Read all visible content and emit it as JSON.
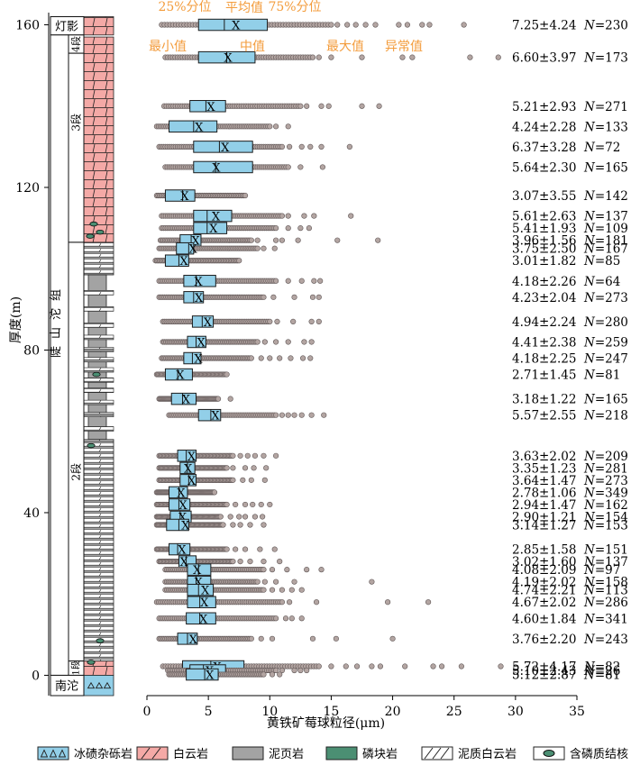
{
  "chart_data": {
    "type": "box",
    "xlabel": "黄铁矿莓球粒径(μm)",
    "ylabel": "厚度(m)",
    "xlim": [
      0,
      35
    ],
    "ylim": [
      -5,
      163
    ],
    "xticks": [
      0,
      5,
      10,
      15,
      20,
      25,
      30,
      35
    ],
    "yticks": [
      0,
      40,
      80,
      120,
      160
    ],
    "formation_label": "陡山沱组",
    "units": [
      {
        "name": "灯影",
        "bottom": 157.5,
        "top": 162
      },
      {
        "name": "4段",
        "bottom": 153,
        "top": 157.5
      },
      {
        "name": "3段",
        "bottom": 106.5,
        "top": 157.5
      },
      {
        "name": "2段",
        "bottom": 3.5,
        "top": 106.5
      },
      {
        "name": "1段",
        "bottom": 0,
        "top": 3.5
      },
      {
        "name": "南沱",
        "bottom": -5,
        "top": 0
      }
    ],
    "lithology": [
      {
        "type": "dolomite",
        "bottom": 157.5,
        "top": 162
      },
      {
        "type": "dolomite",
        "bottom": 106.5,
        "top": 157
      },
      {
        "type": "muddy_dolomite",
        "bottom": 98.5,
        "top": 106.5
      },
      {
        "type": "shale",
        "bottom": 58,
        "top": 98.5
      },
      {
        "type": "muddy_dolomite",
        "bottom": 3.5,
        "top": 58
      },
      {
        "type": "dolomite",
        "bottom": 0,
        "top": 3.5
      },
      {
        "type": "tillite",
        "bottom": -5,
        "top": 0
      }
    ],
    "annotations": {
      "q1": "25%分位",
      "mean": "平均值",
      "q3": "75%分位",
      "min": "最小值",
      "median": "中值",
      "max": "最大值",
      "outlier": "异常值"
    },
    "samples": [
      {
        "depth": 160,
        "q1": 4.2,
        "median": 6.3,
        "q3": 9.8,
        "mean": 7.25,
        "min": 1.2,
        "max": 15.0,
        "outliers": [
          15.5,
          16.3,
          17.0,
          17.8,
          18.6,
          20.5,
          21.2,
          22.4,
          23.0,
          25.8
        ],
        "label": "7.25±4.24",
        "n": 230
      },
      {
        "depth": 152,
        "q1": 4.2,
        "median": 6.5,
        "q3": 8.8,
        "mean": 6.6,
        "min": 1.5,
        "max": 13.5,
        "outliers": [
          14.0,
          15.0,
          17.5,
          20.8,
          21.6,
          26.3,
          28.6
        ],
        "label": "6.60±3.97",
        "n": 173
      },
      {
        "depth": 140,
        "q1": 3.5,
        "median": 4.8,
        "q3": 6.4,
        "mean": 5.21,
        "min": 1.4,
        "max": 12.5,
        "outliers": [
          13.0,
          14.2,
          14.8,
          17.5,
          18.9
        ],
        "label": "5.21±2.93",
        "n": 271
      },
      {
        "depth": 135,
        "q1": 1.8,
        "median": 3.8,
        "q3": 5.7,
        "mean": 4.24,
        "min": 0.8,
        "max": 10.0,
        "outliers": [
          10.5,
          11.5
        ],
        "label": "4.24±2.28",
        "n": 133
      },
      {
        "depth": 130,
        "q1": 3.8,
        "median": 5.9,
        "q3": 8.6,
        "mean": 6.37,
        "min": 1.0,
        "max": 11.0,
        "outliers": [
          11.6,
          12.6,
          13.3,
          14.2,
          16.5
        ],
        "label": "6.37±3.28",
        "n": 72
      },
      {
        "depth": 125,
        "q1": 3.8,
        "median": 5.6,
        "q3": 8.6,
        "mean": 5.64,
        "min": 1.5,
        "max": 11.5,
        "outliers": [
          12.5,
          14.3
        ],
        "label": "5.64±2.30",
        "n": 165
      },
      {
        "depth": 118,
        "q1": 1.5,
        "median": 2.9,
        "q3": 3.9,
        "mean": 3.07,
        "min": 0.8,
        "max": 8.0,
        "outliers": [],
        "label": "3.07±3.55",
        "n": 142
      },
      {
        "depth": 113,
        "q1": 3.8,
        "median": 4.9,
        "q3": 6.9,
        "mean": 5.61,
        "min": 1.2,
        "max": 11.0,
        "outliers": [
          11.5,
          12.8,
          13.6,
          16.6
        ],
        "label": "5.61±2.63",
        "n": 137
      },
      {
        "depth": 110,
        "q1": 3.8,
        "median": 4.9,
        "q3": 6.5,
        "mean": 5.41,
        "min": 1.2,
        "max": 10.5,
        "outliers": [
          11.5,
          12.5,
          13.2
        ],
        "label": "5.41±1.93",
        "n": 109
      },
      {
        "depth": 107,
        "q1": 2.7,
        "median": 3.6,
        "q3": 4.4,
        "mean": 3.96,
        "min": 1.1,
        "max": 8.5,
        "outliers": [
          9.0,
          10.5,
          11.0,
          12.3,
          15.5,
          18.8
        ],
        "label": "3.96±1.56",
        "n": 181
      },
      {
        "depth": 105,
        "q1": 2.4,
        "median": 3.4,
        "q3": 3.8,
        "mean": 3.75,
        "min": 1.0,
        "max": 9.0,
        "outliers": [
          9.5,
          10.4
        ],
        "label": "3.75±2.50",
        "n": 167
      },
      {
        "depth": 102,
        "q1": 1.5,
        "median": 2.6,
        "q3": 3.4,
        "mean": 3.01,
        "min": 0.7,
        "max": 7.5,
        "outliers": [],
        "label": "3.01±1.82",
        "n": 85
      },
      {
        "depth": 97,
        "q1": 3.0,
        "median": 4.0,
        "q3": 5.6,
        "mean": 4.18,
        "min": 1.0,
        "max": 10.5,
        "outliers": [
          11.5,
          12.6,
          13.6,
          14.1
        ],
        "label": "4.18±2.26",
        "n": 64
      },
      {
        "depth": 93,
        "q1": 3.0,
        "median": 3.8,
        "q3": 4.6,
        "mean": 4.23,
        "min": 1.0,
        "max": 9.5,
        "outliers": [
          10.3,
          12.0,
          13.5,
          14.0
        ],
        "label": "4.23±2.04",
        "n": 273
      },
      {
        "depth": 87,
        "q1": 3.7,
        "median": 4.5,
        "q3": 5.4,
        "mean": 4.94,
        "min": 1.3,
        "max": 10.0,
        "outliers": [
          10.6,
          11.9,
          13.4,
          14.0
        ],
        "label": "4.94±2.24",
        "n": 280
      },
      {
        "depth": 82,
        "q1": 3.3,
        "median": 4.0,
        "q3": 4.8,
        "mean": 4.41,
        "min": 1.3,
        "max": 9.0,
        "outliers": [
          9.6,
          10.5,
          11.5,
          12.8,
          13.4
        ],
        "label": "4.41±2.38",
        "n": 259
      },
      {
        "depth": 78,
        "q1": 3.0,
        "median": 3.7,
        "q3": 4.4,
        "mean": 4.18,
        "min": 1.2,
        "max": 8.5,
        "outliers": [
          9.3,
          10.0,
          10.8,
          11.7,
          12.7,
          13.3
        ],
        "label": "4.18±2.25",
        "n": 247
      },
      {
        "depth": 74,
        "q1": 1.5,
        "median": 2.5,
        "q3": 3.7,
        "mean": 2.71,
        "min": 0.8,
        "max": 6.5,
        "outliers": [],
        "label": "2.71±1.45",
        "n": 81
      },
      {
        "depth": 68,
        "q1": 2.0,
        "median": 2.9,
        "q3": 4.0,
        "mean": 3.18,
        "min": 1.0,
        "max": 5.8,
        "outliers": [
          6.8
        ],
        "label": "3.18±1.22",
        "n": 165
      },
      {
        "depth": 64,
        "q1": 4.2,
        "median": 5.2,
        "q3": 6.0,
        "mean": 5.57,
        "min": 1.8,
        "max": 10.5,
        "outliers": [
          11.0,
          11.5,
          12.0,
          12.6,
          13.4,
          14.4
        ],
        "label": "5.57±2.55",
        "n": 218
      },
      {
        "depth": 54,
        "q1": 2.5,
        "median": 3.2,
        "q3": 4.0,
        "mean": 3.63,
        "min": 1.0,
        "max": 7.0,
        "outliers": [
          7.6,
          8.2,
          8.8,
          9.5,
          10.5
        ],
        "label": "3.63±2.02",
        "n": 209
      },
      {
        "depth": 51,
        "q1": 2.7,
        "median": 3.3,
        "q3": 3.9,
        "mean": 3.35,
        "min": 1.0,
        "max": 6.5,
        "outliers": [
          7.0,
          8.0,
          8.7,
          9.7
        ],
        "label": "3.35±1.23",
        "n": 281
      },
      {
        "depth": 48,
        "q1": 2.7,
        "median": 3.4,
        "q3": 4.0,
        "mean": 3.64,
        "min": 1.0,
        "max": 7.0,
        "outliers": [
          7.8,
          8.5,
          9.6
        ],
        "label": "3.64±1.47",
        "n": 273
      },
      {
        "depth": 45,
        "q1": 1.8,
        "median": 2.6,
        "q3": 3.3,
        "mean": 2.78,
        "min": 0.8,
        "max": 5.5,
        "outliers": [],
        "label": "2.78±1.06",
        "n": 349
      },
      {
        "depth": 42,
        "q1": 1.8,
        "median": 2.6,
        "q3": 3.5,
        "mean": 2.94,
        "min": 0.8,
        "max": 6.5,
        "outliers": [
          7.2,
          8.0,
          8.6,
          9.3,
          10.0
        ],
        "label": "2.94±1.47",
        "n": 162
      },
      {
        "depth": 39,
        "q1": 1.9,
        "median": 2.7,
        "q3": 3.6,
        "mean": 2.9,
        "min": 0.8,
        "max": 6.0,
        "outliers": [
          6.8,
          7.5,
          8.0,
          8.8,
          9.4
        ],
        "label": "2.90±1.21",
        "n": 154
      },
      {
        "depth": 37,
        "q1": 1.6,
        "median": 2.6,
        "q3": 3.4,
        "mean": 3.14,
        "min": 0.8,
        "max": 6.2,
        "outliers": [
          7.0,
          7.6,
          8.4,
          9.5
        ],
        "label": "3.14±1.27",
        "n": 153
      },
      {
        "depth": 31,
        "q1": 1.8,
        "median": 2.5,
        "q3": 3.5,
        "mean": 2.85,
        "min": 0.8,
        "max": 6.5,
        "outliers": [
          7.2,
          8.0,
          9.2,
          10.4
        ],
        "label": "2.85±1.58",
        "n": 151
      },
      {
        "depth": 28,
        "q1": 2.6,
        "median": 3.2,
        "q3": 4.0,
        "mean": 3.02,
        "min": 1.0,
        "max": 7.0,
        "outliers": [
          7.6,
          8.4,
          9.5,
          10.8
        ],
        "label": "3.02±1.60",
        "n": 137
      },
      {
        "depth": 26,
        "q1": 3.3,
        "median": 4.2,
        "q3": 5.2,
        "mean": 4.08,
        "min": 1.5,
        "max": 9.5,
        "outliers": [
          10.2,
          11.4,
          13.0,
          14.2
        ],
        "label": "4.08±2.09",
        "n": 97
      },
      {
        "depth": 23,
        "q1": 3.3,
        "median": 4.0,
        "q3": 5.2,
        "mean": 4.19,
        "min": 1.5,
        "max": 9.0,
        "outliers": [
          9.6,
          10.5,
          12.0,
          18.3
        ],
        "label": "4.19±2.02",
        "n": 158
      },
      {
        "depth": 21,
        "q1": 3.3,
        "median": 4.2,
        "q3": 5.4,
        "mean": 4.74,
        "min": 1.5,
        "max": 9.5,
        "outliers": [
          10.2,
          11.0,
          11.8,
          12.6
        ],
        "label": "4.74±2.21",
        "n": 113
      },
      {
        "depth": 18,
        "q1": 3.3,
        "median": 4.3,
        "q3": 5.6,
        "mean": 4.67,
        "min": 0.8,
        "max": 11.0,
        "outliers": [
          11.6,
          13.8,
          19.6,
          22.9
        ],
        "label": "4.67±2.02",
        "n": 286
      },
      {
        "depth": 14,
        "q1": 3.2,
        "median": 4.3,
        "q3": 5.6,
        "mean": 4.6,
        "min": 1.0,
        "max": 10.5,
        "outliers": [
          11.3,
          11.8,
          12.6
        ],
        "label": "4.60±1.84",
        "n": 341
      },
      {
        "depth": 9,
        "q1": 2.5,
        "median": 3.3,
        "q3": 4.1,
        "mean": 3.76,
        "min": 1.0,
        "max": 8.5,
        "outliers": [
          9.3,
          10.2,
          13.5,
          15.4,
          20.0
        ],
        "label": "3.76±2.20",
        "n": 243
      },
      {
        "depth": 2.2,
        "q1": 2.9,
        "median": 5.2,
        "q3": 7.9,
        "mean": 5.72,
        "min": 1.3,
        "max": 14.0,
        "outliers": [
          15.0,
          16.2,
          17.1,
          18.3,
          19.0,
          21.0,
          23.3,
          24.0,
          25.6,
          28.8
        ],
        "label": "5.72±4.17",
        "n": 82
      },
      {
        "depth": 1.2,
        "q1": 3.5,
        "median": 4.6,
        "q3": 6.4,
        "mean": 5.1,
        "min": 1.7,
        "max": 10.5,
        "outliers": [
          11.0,
          12.0,
          12.5,
          13.0
        ],
        "label": "5.10±2.43",
        "n": 26
      },
      {
        "depth": 0.2,
        "q1": 3.2,
        "median": 4.7,
        "q3": 5.8,
        "mean": 5.12,
        "min": 1.8,
        "max": 9.5,
        "outliers": [
          10.2,
          10.8
        ],
        "label": "5.12±2.87",
        "n": 81
      }
    ]
  },
  "legend": {
    "items": [
      {
        "key": "tillite",
        "label": "冰碛杂砾岩"
      },
      {
        "key": "dolomite",
        "label": "白云岩"
      },
      {
        "key": "shale",
        "label": "泥页岩"
      },
      {
        "key": "phosphorite",
        "label": "磷块岩"
      },
      {
        "key": "muddy_dolomite",
        "label": "泥质白云岩"
      },
      {
        "key": "phosphate_nodule",
        "label": "含磷质结核"
      }
    ]
  },
  "colors": {
    "box_fill": "#92cfe8",
    "dolomite": "#f4a9a6",
    "shale": "#a3a3a3",
    "phosphorite": "#4b8f73",
    "outlier_fill": "#b3a5a2",
    "annotation": "#f39c3c"
  }
}
